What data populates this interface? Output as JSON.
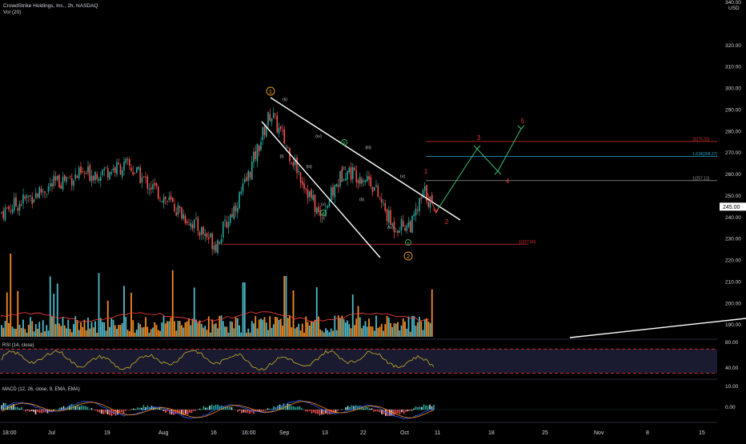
{
  "header": {
    "symbol_line": "CrowdStrike Holdings, Inc., 2h, NASDAQ",
    "vol_label": "Vol (20)"
  },
  "price_axis": {
    "currency": "USD",
    "ticks": [
      "320.00",
      "310.00",
      "300.00",
      "290.00",
      "280.00",
      "270.00",
      "260.00",
      "250.00",
      "240.00",
      "230.00",
      "220.00",
      "210.00",
      "200.00",
      "190.00"
    ],
    "top_label": "340.00",
    "current_price": "245.00"
  },
  "rsi_panel": {
    "label": "RSI (14, close)",
    "ticks": [
      "80.00",
      "40.00"
    ],
    "upper_band": 70,
    "lower_band": 30
  },
  "macd_panel": {
    "label": "MACD (12, 26, close, 9, EMA, EMA)",
    "ticks": [
      "10.00",
      "0.00"
    ]
  },
  "time_axis": {
    "labels": [
      "18:00",
      "Jul",
      "19",
      "Aug",
      "16",
      "16:00",
      "Sep",
      "13",
      "22",
      "Oct",
      "11",
      "18",
      "25",
      "Nov",
      "8",
      "15"
    ]
  },
  "elliott_labels": {
    "primary": [
      "1",
      "2"
    ],
    "minor": [
      "(i)",
      "(ii)",
      "(iii)",
      "(iv)",
      "(v)",
      "(i)",
      "(ii)",
      "(iii)",
      "(iv)",
      "(v)"
    ],
    "abc": [
      "a",
      "b",
      "c"
    ],
    "projection": [
      "1",
      "2",
      "3",
      "4",
      "5"
    ]
  },
  "fib_levels": [
    {
      "label": "1(227.55)",
      "price": 227.55,
      "color": "#e03030"
    },
    {
      "label": "1(257.12)",
      "price": 257.12,
      "color": "#9a9a9a"
    },
    {
      "label": "1.618(268.37)",
      "price": 268.37,
      "color": "#2aa8c8"
    },
    {
      "label": "2(275.32)",
      "price": 275.32,
      "color": "#e03030"
    }
  ],
  "colors": {
    "up": "#26a69a",
    "down": "#ef5350",
    "vol_up": "#4fb8c8",
    "vol_down": "#f08a24",
    "rsi_line": "#c8b428",
    "macd_line": "#2962ff",
    "signal_line": "#ff8c1a",
    "wave_orange": "#f0a020",
    "wave_green": "#3cb060",
    "wave_purple": "#b070d0",
    "projection_red": "#e53935",
    "projection_arrow": "#3cc070"
  },
  "chart_data": {
    "type": "candlestick",
    "x": [
      "18:00",
      "Jul",
      "19",
      "Aug",
      "16",
      "16:00",
      "Sep",
      "13",
      "22",
      "Oct",
      "11"
    ],
    "ylim": [
      183,
      340
    ],
    "swing_points": [
      {
        "label": "start",
        "price": 242
      },
      {
        "label": "Jul",
        "price": 258
      },
      {
        "label": "Aug low",
        "price": 227.55
      },
      {
        "label": "wave 1",
        "price": 289
      },
      {
        "label": "wave 2",
        "price": 235
      },
      {
        "label": "last",
        "price": 245
      }
    ],
    "projection_path": [
      {
        "wave": "2",
        "price": 240
      },
      {
        "wave": "3",
        "price": 269
      },
      {
        "wave": "4",
        "price": 258
      },
      {
        "wave": "5",
        "price": 275.32
      }
    ],
    "rsi_range": [
      20,
      85
    ],
    "macd_range": [
      -5,
      12
    ]
  }
}
